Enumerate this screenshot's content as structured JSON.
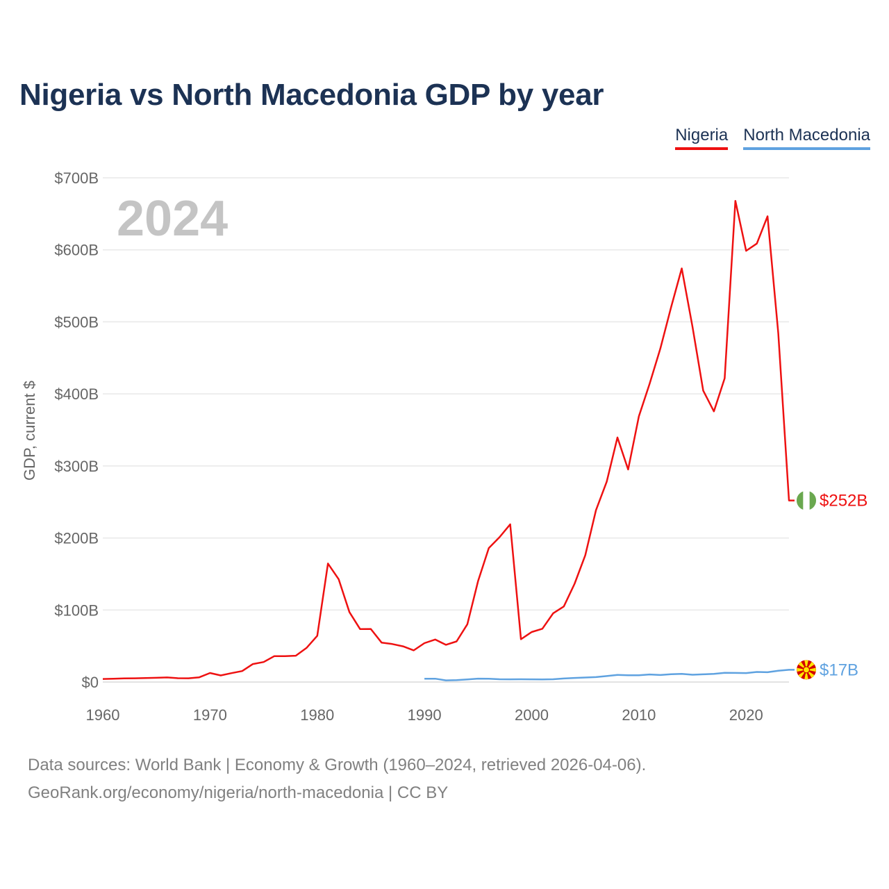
{
  "title": "Nigeria vs North Macedonia GDP by year",
  "footer": {
    "line1": "Data sources: World Bank | Economy & Growth (1960–2024, retrieved 2026-04-06).",
    "line2": "GeoRank.org/economy/nigeria/north-macedonia | CC BY"
  },
  "chart_data": {
    "type": "line",
    "title": "Nigeria vs North Macedonia GDP by year",
    "ylabel": "GDP, current $",
    "xlabel": "",
    "year_label": "2024",
    "xlim": [
      1960,
      2024
    ],
    "ylim": [
      0,
      700
    ],
    "x_ticks": [
      1960,
      1970,
      1980,
      1990,
      2000,
      2010,
      2020
    ],
    "y_ticks": [
      {
        "value": 0,
        "label": "$0"
      },
      {
        "value": 100,
        "label": "$100B"
      },
      {
        "value": 200,
        "label": "$200B"
      },
      {
        "value": 300,
        "label": "$300B"
      },
      {
        "value": 400,
        "label": "$400B"
      },
      {
        "value": 500,
        "label": "$500B"
      },
      {
        "value": 600,
        "label": "$600B"
      },
      {
        "value": 700,
        "label": "$700B"
      }
    ],
    "series": [
      {
        "name": "Nigeria",
        "color": "#ee1111",
        "end_label": "$252B",
        "flag_colors": [
          "#6aa84f",
          "#ffffff"
        ],
        "x": [
          1960,
          1961,
          1962,
          1963,
          1964,
          1965,
          1966,
          1967,
          1968,
          1969,
          1970,
          1971,
          1972,
          1973,
          1974,
          1975,
          1976,
          1977,
          1978,
          1979,
          1980,
          1981,
          1982,
          1983,
          1984,
          1985,
          1986,
          1987,
          1988,
          1989,
          1990,
          1991,
          1992,
          1993,
          1994,
          1995,
          1996,
          1997,
          1998,
          1999,
          2000,
          2001,
          2002,
          2003,
          2004,
          2005,
          2006,
          2007,
          2008,
          2009,
          2010,
          2011,
          2012,
          2013,
          2014,
          2015,
          2016,
          2017,
          2018,
          2019,
          2020,
          2021,
          2022,
          2023,
          2024
        ],
        "values": [
          4.2,
          4.5,
          5,
          5.2,
          5.5,
          5.9,
          6.4,
          5.3,
          5.2,
          6.6,
          12.5,
          9.2,
          12.3,
          15.2,
          25.0,
          27.8,
          36.0,
          36.0,
          36.5,
          47.3,
          64.2,
          164.5,
          142.8,
          97.1,
          73.5,
          73.7,
          54.8,
          52.7,
          49.6,
          44.0,
          54.0,
          59.0,
          51.7,
          56.4,
          80.2,
          140.0,
          186.0,
          201.0,
          219.0,
          59.4,
          69.4,
          74.0,
          95.4,
          104.9,
          136.4,
          176.1,
          238.5,
          278.3,
          339.5,
          295.0,
          369.0,
          414.0,
          463.0,
          520.1,
          574.2,
          493.0,
          404.6,
          375.7,
          421.7,
          668.0,
          598.7,
          608.7,
          646.6,
          484.0,
          252.0
        ]
      },
      {
        "name": "North Macedonia",
        "color": "#5fa2e0",
        "end_label": "$17B",
        "flag_colors": [
          "#d20000",
          "#ffe600"
        ],
        "x": [
          1990,
          1991,
          1992,
          1993,
          1994,
          1995,
          1996,
          1997,
          1998,
          1999,
          2000,
          2001,
          2002,
          2003,
          2004,
          2005,
          2006,
          2007,
          2008,
          2009,
          2010,
          2011,
          2012,
          2013,
          2014,
          2015,
          2016,
          2017,
          2018,
          2019,
          2020,
          2021,
          2022,
          2023,
          2024
        ],
        "values": [
          4.5,
          4.6,
          2.3,
          2.6,
          3.6,
          4.7,
          4.6,
          3.9,
          3.8,
          3.9,
          3.8,
          3.7,
          3.9,
          4.9,
          5.7,
          6.3,
          6.8,
          8.3,
          9.8,
          9.4,
          9.4,
          10.5,
          9.7,
          10.8,
          11.4,
          10.1,
          10.7,
          11.3,
          12.7,
          12.6,
          12.4,
          14.0,
          13.6,
          15.7,
          17.0
        ]
      }
    ]
  }
}
